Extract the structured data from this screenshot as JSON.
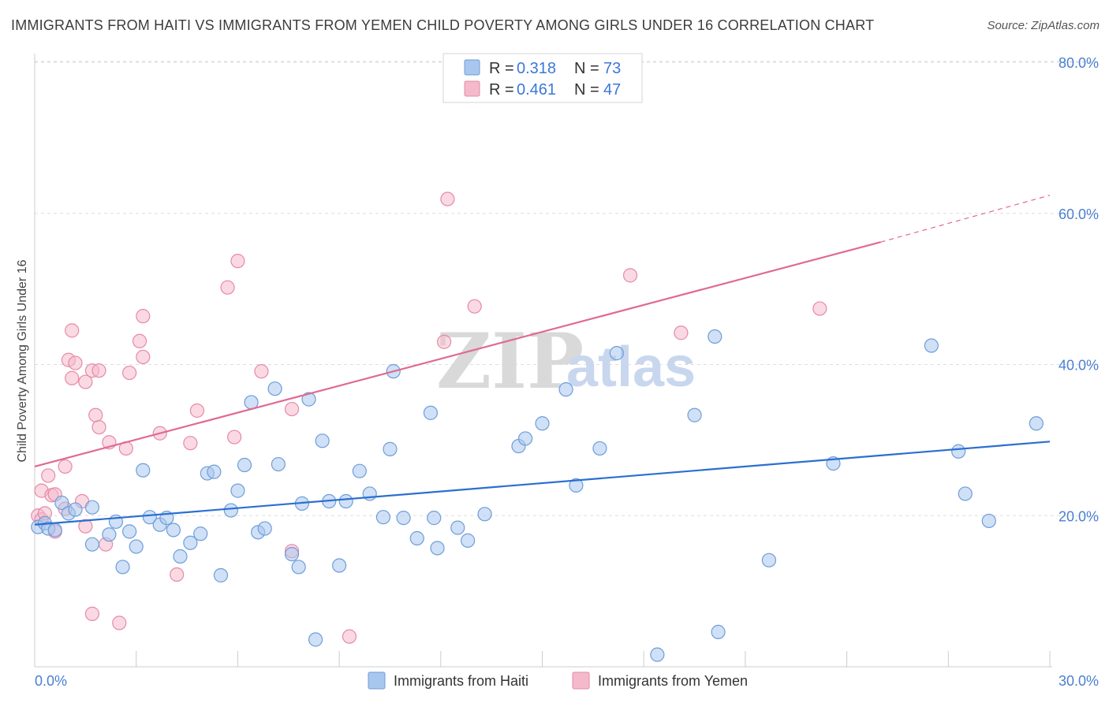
{
  "header": {
    "title": "IMMIGRANTS FROM HAITI VS IMMIGRANTS FROM YEMEN CHILD POVERTY AMONG GIRLS UNDER 16 CORRELATION CHART",
    "source": "Source: ZipAtlas.com"
  },
  "watermark": {
    "zip": "ZIP",
    "atlas": "atlas"
  },
  "legend": {
    "rows": [
      {
        "r_label": "R = ",
        "r_value": "0.318",
        "n_label": "N = ",
        "n_value": "73"
      },
      {
        "r_label": "R = ",
        "r_value": "0.461",
        "n_label": "N = ",
        "n_value": "47"
      }
    ]
  },
  "bottom_legend": {
    "haiti": "Immigrants from Haiti",
    "yemen": "Immigrants from Yemen"
  },
  "colors": {
    "haiti_fill": "#a9c7ee",
    "haiti_stroke": "#6d9ed9",
    "haiti_line": "#2a6fd1",
    "yemen_fill": "#f5b9cc",
    "yemen_stroke": "#e58aa8",
    "yemen_line": "#e06a92",
    "grid": "#dddddd"
  },
  "chart_data": {
    "type": "scatter",
    "title": "IMMIGRANTS FROM HAITI VS IMMIGRANTS FROM YEMEN CHILD POVERTY AMONG GIRLS UNDER 16 CORRELATION CHART",
    "xlabel": "",
    "ylabel": "Child Poverty Among Girls Under 16",
    "xlim": [
      0,
      30
    ],
    "ylim": [
      0,
      80
    ],
    "x_ticks": [
      "0.0%",
      "30.0%"
    ],
    "y_ticks": [
      {
        "value": 20,
        "label": "20.0%"
      },
      {
        "value": 40,
        "label": "40.0%"
      },
      {
        "value": 60,
        "label": "60.0%"
      },
      {
        "value": 80,
        "label": "80.0%"
      }
    ],
    "grid": true,
    "legend_position": "top-center",
    "series": [
      {
        "name": "Immigrants from Haiti",
        "R": 0.318,
        "N": 73,
        "trend": {
          "x0": 0,
          "y0": 18.8,
          "x1": 30,
          "y1": 29.8
        },
        "points": [
          [
            0.1,
            18.5
          ],
          [
            0.3,
            19.0
          ],
          [
            0.4,
            18.3
          ],
          [
            0.6,
            18.1
          ],
          [
            0.8,
            21.7
          ],
          [
            1.0,
            20.3
          ],
          [
            1.2,
            20.8
          ],
          [
            1.7,
            21.1
          ],
          [
            1.7,
            16.2
          ],
          [
            2.2,
            17.5
          ],
          [
            2.4,
            19.2
          ],
          [
            2.6,
            13.2
          ],
          [
            2.8,
            17.9
          ],
          [
            3.0,
            15.9
          ],
          [
            3.2,
            26.0
          ],
          [
            3.4,
            19.8
          ],
          [
            3.7,
            18.8
          ],
          [
            3.9,
            19.7
          ],
          [
            4.1,
            18.1
          ],
          [
            4.3,
            14.6
          ],
          [
            4.6,
            16.4
          ],
          [
            4.9,
            17.6
          ],
          [
            5.1,
            25.6
          ],
          [
            5.3,
            25.8
          ],
          [
            5.5,
            12.1
          ],
          [
            5.8,
            20.7
          ],
          [
            6.0,
            23.3
          ],
          [
            6.2,
            26.7
          ],
          [
            6.4,
            35.0
          ],
          [
            6.6,
            17.8
          ],
          [
            6.8,
            18.3
          ],
          [
            7.1,
            36.8
          ],
          [
            7.2,
            26.8
          ],
          [
            7.6,
            14.9
          ],
          [
            7.8,
            13.2
          ],
          [
            7.9,
            21.6
          ],
          [
            8.1,
            35.4
          ],
          [
            8.3,
            3.6
          ],
          [
            8.5,
            29.9
          ],
          [
            8.7,
            21.9
          ],
          [
            9.0,
            13.4
          ],
          [
            9.2,
            21.9
          ],
          [
            9.6,
            25.9
          ],
          [
            9.9,
            22.9
          ],
          [
            10.3,
            19.8
          ],
          [
            10.5,
            28.8
          ],
          [
            10.6,
            39.1
          ],
          [
            10.9,
            19.7
          ],
          [
            11.3,
            17.0
          ],
          [
            11.7,
            33.6
          ],
          [
            11.8,
            19.7
          ],
          [
            11.9,
            15.7
          ],
          [
            12.5,
            18.4
          ],
          [
            12.8,
            16.7
          ],
          [
            13.3,
            20.2
          ],
          [
            14.3,
            29.2
          ],
          [
            14.5,
            30.2
          ],
          [
            15.0,
            32.2
          ],
          [
            15.7,
            36.7
          ],
          [
            16.0,
            24.0
          ],
          [
            16.7,
            28.9
          ],
          [
            17.2,
            41.5
          ],
          [
            18.4,
            1.6
          ],
          [
            19.5,
            33.3
          ],
          [
            20.1,
            43.7
          ],
          [
            20.2,
            4.6
          ],
          [
            21.7,
            14.1
          ],
          [
            23.6,
            26.9
          ],
          [
            26.5,
            42.5
          ],
          [
            27.3,
            28.5
          ],
          [
            27.5,
            22.9
          ],
          [
            28.2,
            19.3
          ],
          [
            29.6,
            32.2
          ]
        ]
      },
      {
        "name": "Immigrants from Yemen",
        "R": 0.461,
        "N": 47,
        "trend": {
          "x0": 0,
          "y0": 26.5,
          "x1": 25,
          "y1": 56.2,
          "dash_x1": 30,
          "dash_y1": 62.4
        },
        "points": [
          [
            0.1,
            20.0
          ],
          [
            0.2,
            19.5
          ],
          [
            0.2,
            23.3
          ],
          [
            0.3,
            20.3
          ],
          [
            0.4,
            25.3
          ],
          [
            0.5,
            22.7
          ],
          [
            0.6,
            22.8
          ],
          [
            0.6,
            17.9
          ],
          [
            0.9,
            26.5
          ],
          [
            0.9,
            20.9
          ],
          [
            1.0,
            40.6
          ],
          [
            1.1,
            44.5
          ],
          [
            1.1,
            38.2
          ],
          [
            1.2,
            40.2
          ],
          [
            1.4,
            21.9
          ],
          [
            1.5,
            18.6
          ],
          [
            1.5,
            37.7
          ],
          [
            1.7,
            39.2
          ],
          [
            1.7,
            7.0
          ],
          [
            1.8,
            33.3
          ],
          [
            1.9,
            39.2
          ],
          [
            1.9,
            31.7
          ],
          [
            2.1,
            16.2
          ],
          [
            2.2,
            29.7
          ],
          [
            2.5,
            5.8
          ],
          [
            2.7,
            28.9
          ],
          [
            2.8,
            38.9
          ],
          [
            3.1,
            43.1
          ],
          [
            3.2,
            46.4
          ],
          [
            3.2,
            41.0
          ],
          [
            3.7,
            30.9
          ],
          [
            4.2,
            12.2
          ],
          [
            4.6,
            29.6
          ],
          [
            4.8,
            33.9
          ],
          [
            5.7,
            50.2
          ],
          [
            5.9,
            30.4
          ],
          [
            6.0,
            53.7
          ],
          [
            6.7,
            39.1
          ],
          [
            7.6,
            15.3
          ],
          [
            7.6,
            34.1
          ],
          [
            9.3,
            4.0
          ],
          [
            12.1,
            43.0
          ],
          [
            12.2,
            61.9
          ],
          [
            13.0,
            47.7
          ],
          [
            17.6,
            51.8
          ],
          [
            19.1,
            44.2
          ],
          [
            23.2,
            47.4
          ]
        ]
      }
    ]
  }
}
